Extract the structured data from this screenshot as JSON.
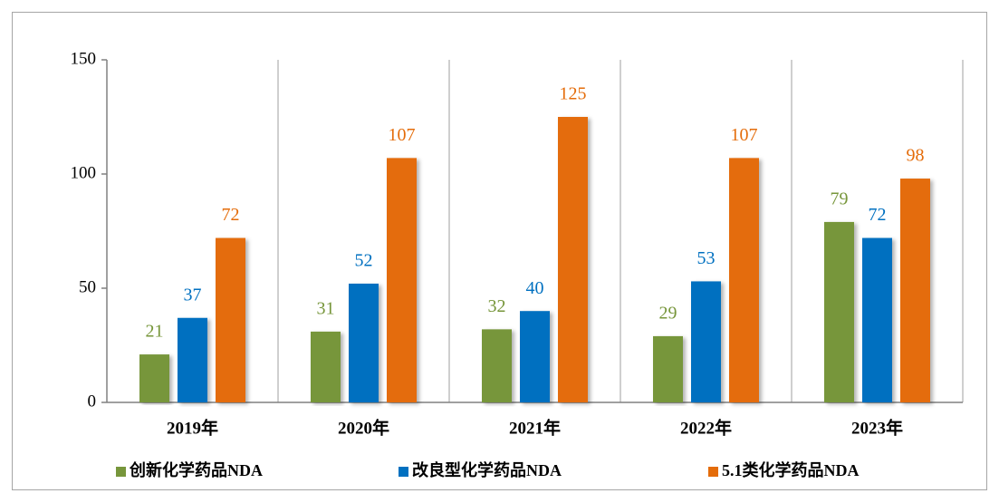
{
  "chart_data": {
    "type": "bar",
    "categories": [
      "2019年",
      "2020年",
      "2021年",
      "2022年",
      "2023年"
    ],
    "series": [
      {
        "name": "创新化学药品NDA",
        "color": "#77963b",
        "values": [
          21,
          31,
          32,
          29,
          79
        ]
      },
      {
        "name": "改良型化学药品NDA",
        "color": "#0070c0",
        "values": [
          37,
          52,
          40,
          53,
          72
        ]
      },
      {
        "name": "5.1类化学药品NDA",
        "color": "#e46c0a",
        "values": [
          72,
          107,
          125,
          107,
          98
        ]
      }
    ],
    "ylim": [
      0,
      150
    ],
    "yticks": [
      0,
      50,
      100,
      150
    ],
    "legend": "bottom"
  }
}
